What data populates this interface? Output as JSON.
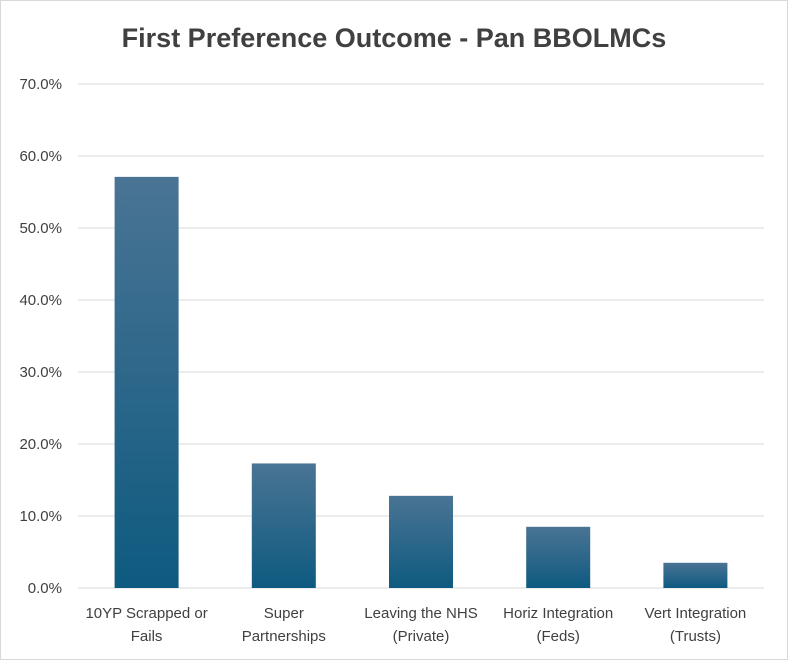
{
  "chart_data": {
    "type": "bar",
    "title": "First Preference Outcome - Pan BBOLMCs",
    "xlabel": "",
    "ylabel": "",
    "ylim": [
      0,
      70
    ],
    "y_ticks": [
      "0.0%",
      "10.0%",
      "20.0%",
      "30.0%",
      "40.0%",
      "50.0%",
      "60.0%",
      "70.0%"
    ],
    "categories": [
      [
        "10YP Scrapped or",
        "Fails"
      ],
      [
        "Super",
        "Partnerships"
      ],
      [
        "Leaving the NHS",
        "(Private)"
      ],
      [
        "Horiz Integration",
        "(Feds)"
      ],
      [
        "Vert Integration",
        "(Trusts)"
      ]
    ],
    "values": [
      57.1,
      17.3,
      12.8,
      8.5,
      3.5
    ],
    "unit": "%",
    "grid": true,
    "legend": "none",
    "colors": {
      "bar_top": "#4a7494",
      "bar_bottom": "#0e5a80",
      "grid": "#d9d9d9",
      "text": "#404040"
    }
  }
}
